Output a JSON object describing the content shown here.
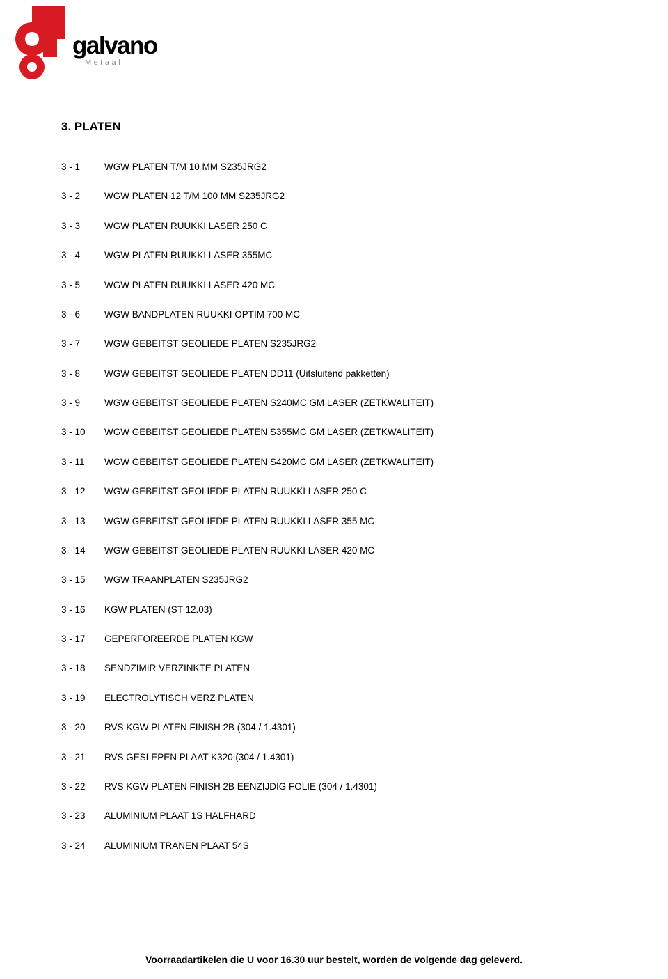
{
  "logo": {
    "main": "galvano",
    "sub": "Metaal",
    "colors": {
      "red": "#d81a22",
      "black": "#000000",
      "grey": "#888888"
    }
  },
  "heading": "3. PLATEN",
  "items": [
    {
      "code": "3 - 1",
      "text": "WGW PLATEN T/M 10 MM S235JRG2"
    },
    {
      "code": "3 - 2",
      "text": "WGW PLATEN 12 T/M 100 MM S235JRG2"
    },
    {
      "code": "3 - 3",
      "text": "WGW PLATEN RUUKKI LASER 250 C"
    },
    {
      "code": "3 - 4",
      "text": "WGW PLATEN RUUKKI LASER 355MC"
    },
    {
      "code": "3 - 5",
      "text": "WGW PLATEN RUUKKI LASER 420 MC"
    },
    {
      "code": "3 - 6",
      "text": "WGW BANDPLATEN RUUKKI OPTIM 700 MC"
    },
    {
      "code": "3 - 7",
      "text": "WGW GEBEITST GEOLIEDE PLATEN S235JRG2"
    },
    {
      "code": "3 - 8",
      "text": "WGW GEBEITST GEOLIEDE PLATEN DD11 (Uitsluitend pakketten)"
    },
    {
      "code": "3 - 9",
      "text": "WGW GEBEITST GEOLIEDE PLATEN S240MC GM LASER (ZETKWALITEIT)"
    },
    {
      "code": "3 - 10",
      "text": "WGW GEBEITST GEOLIEDE PLATEN S355MC GM LASER (ZETKWALITEIT)"
    },
    {
      "code": "3 - 11",
      "text": "WGW GEBEITST GEOLIEDE PLATEN S420MC GM LASER (ZETKWALITEIT)"
    },
    {
      "code": "3 - 12",
      "text": "WGW GEBEITST GEOLIEDE PLATEN RUUKKI LASER 250 C"
    },
    {
      "code": "3 - 13",
      "text": "WGW GEBEITST GEOLIEDE PLATEN RUUKKI LASER 355 MC"
    },
    {
      "code": "3 - 14",
      "text": "WGW GEBEITST GEOLIEDE PLATEN RUUKKI LASER 420 MC"
    },
    {
      "code": "3 - 15",
      "text": "WGW TRAANPLATEN S235JRG2"
    },
    {
      "code": "3 - 16",
      "text": "KGW PLATEN (ST 12.03)"
    },
    {
      "code": "3 - 17",
      "text": "GEPERFOREERDE PLATEN KGW"
    },
    {
      "code": "3 - 18",
      "text": "SENDZIMIR VERZINKTE PLATEN"
    },
    {
      "code": "3 - 19",
      "text": "ELECTROLYTISCH VERZ PLATEN"
    },
    {
      "code": "3 - 20",
      "text": "RVS KGW PLATEN FINISH 2B (304 / 1.4301)"
    },
    {
      "code": "3 - 21",
      "text": "RVS GESLEPEN PLAAT K320 (304 / 1.4301)"
    },
    {
      "code": "3 - 22",
      "text": "RVS KGW PLATEN FINISH 2B EENZIJDIG FOLIE (304 / 1.4301)"
    },
    {
      "code": "3 - 23",
      "text": "ALUMINIUM PLAAT 1S HALFHARD"
    },
    {
      "code": "3 - 24",
      "text": "ALUMINIUM TRANEN PLAAT 54S"
    }
  ],
  "footer": "Voorraadartikelen die U voor 16.30 uur bestelt, worden de volgende dag geleverd."
}
